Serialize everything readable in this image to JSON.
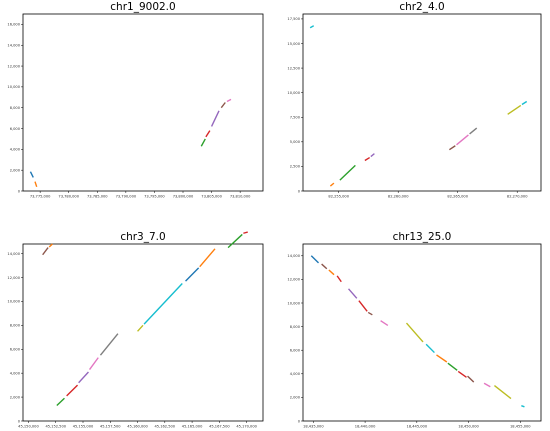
{
  "chart_data": [
    {
      "type": "line",
      "title": "chr1_9002.0",
      "xlabel": "",
      "ylabel": "",
      "xlim": [
        73772000,
        73814000
      ],
      "ylim": [
        0,
        17000
      ],
      "xticks": [
        73775000,
        73780000,
        73785000,
        73790000,
        73795000,
        73800000,
        73805000,
        73810000
      ],
      "xtick_labels": [
        "73,775,000",
        "73,780,000",
        "73,785,000",
        "73,790,000",
        "73,795,000",
        "73,800,000",
        "73,805,000",
        "73,810,000"
      ],
      "yticks": [
        0,
        2000,
        4000,
        6000,
        8000,
        10000,
        12000,
        14000,
        16000
      ],
      "ytick_labels": [
        "0",
        "2,000",
        "4,000",
        "6,000",
        "8,000",
        "10,000",
        "12,000",
        "14,000",
        "16,000"
      ],
      "series": [
        {
          "color": "#1f77b4",
          "points": [
            [
              73773300,
              1850
            ],
            [
              73773800,
              1300
            ]
          ]
        },
        {
          "color": "#ff7f0e",
          "points": [
            [
              73774100,
              900
            ],
            [
              73774400,
              400
            ]
          ]
        },
        {
          "color": "#2ca02c",
          "points": [
            [
              73803200,
              4300
            ],
            [
              73803900,
              5000
            ]
          ]
        },
        {
          "color": "#d62728",
          "points": [
            [
              73804000,
              5200
            ],
            [
              73804700,
              5800
            ]
          ]
        },
        {
          "color": "#9467bd",
          "points": [
            [
              73805000,
              6200
            ],
            [
              73806300,
              7700
            ]
          ]
        },
        {
          "color": "#8c564b",
          "points": [
            [
              73806700,
              8000
            ],
            [
              73807400,
              8500
            ]
          ]
        },
        {
          "color": "#e377c2",
          "points": [
            [
              73807700,
              8600
            ],
            [
              73808400,
              8800
            ]
          ]
        }
      ]
    },
    {
      "type": "line",
      "title": "chr2_4.0",
      "xlabel": "",
      "ylabel": "",
      "xlim": [
        82252000,
        82272000
      ],
      "ylim": [
        0,
        18000
      ],
      "xticks": [
        82255000,
        82260000,
        82265000,
        82270000
      ],
      "xtick_labels": [
        "82,255,000",
        "82,260,000",
        "82,265,000",
        "82,270,000"
      ],
      "yticks": [
        0,
        2500,
        5000,
        7500,
        10000,
        12500,
        15000,
        17500
      ],
      "ytick_labels": [
        "0",
        "2,500",
        "5,000",
        "7,500",
        "10,000",
        "12,500",
        "15,000",
        "17,500"
      ],
      "series": [
        {
          "color": "#17becf",
          "points": [
            [
              82252600,
              16600
            ],
            [
              82252900,
              16800
            ]
          ]
        },
        {
          "color": "#ff7f0e",
          "points": [
            [
              82254300,
              500
            ],
            [
              82254600,
              800
            ]
          ]
        },
        {
          "color": "#2ca02c",
          "points": [
            [
              82255100,
              1100
            ],
            [
              82256400,
              2600
            ]
          ]
        },
        {
          "color": "#d62728",
          "points": [
            [
              82257200,
              3100
            ],
            [
              82257600,
              3400
            ]
          ]
        },
        {
          "color": "#9467bd",
          "points": [
            [
              82257700,
              3500
            ],
            [
              82258000,
              3800
            ]
          ]
        },
        {
          "color": "#8c564b",
          "points": [
            [
              82264300,
              4200
            ],
            [
              82264800,
              4600
            ]
          ]
        },
        {
          "color": "#e377c2",
          "points": [
            [
              82264900,
              4700
            ],
            [
              82265900,
              5700
            ]
          ]
        },
        {
          "color": "#7f7f7f",
          "points": [
            [
              82266000,
              5800
            ],
            [
              82266600,
              6400
            ]
          ]
        },
        {
          "color": "#bcbd22",
          "points": [
            [
              82269200,
              7800
            ],
            [
              82270300,
              8700
            ]
          ]
        },
        {
          "color": "#17becf",
          "points": [
            [
              82270400,
              8800
            ],
            [
              82270800,
              9100
            ]
          ]
        }
      ]
    },
    {
      "type": "line",
      "title": "chr3_7.0",
      "xlabel": "",
      "ylabel": "",
      "xlim": [
        45149500,
        45171500
      ],
      "ylim": [
        0,
        14800
      ],
      "xticks": [
        45150000,
        45152500,
        45155000,
        45157500,
        45160000,
        45162500,
        45165000,
        45167500,
        45170000
      ],
      "xtick_labels": [
        "45,150,000",
        "45,152,500",
        "45,155,000",
        "45,157,500",
        "45,160,000",
        "45,162,500",
        "45,165,000",
        "45,167,500",
        "45,170,000"
      ],
      "yticks": [
        0,
        2000,
        4000,
        6000,
        8000,
        10000,
        12000,
        14000
      ],
      "ytick_labels": [
        "0",
        "2,000",
        "4,000",
        "6,000",
        "8,000",
        "10,000",
        "12,000",
        "14,000"
      ],
      "series": [
        {
          "color": "#8c564b",
          "points": [
            [
              45151300,
              13900
            ],
            [
              45151800,
              14500
            ]
          ]
        },
        {
          "color": "#ff7f0e",
          "points": [
            [
              45151900,
              14550
            ],
            [
              45152200,
              14800
            ]
          ]
        },
        {
          "color": "#2ca02c",
          "points": [
            [
              45152600,
              1300
            ],
            [
              45153300,
              1900
            ]
          ]
        },
        {
          "color": "#d62728",
          "points": [
            [
              45153500,
              2100
            ],
            [
              45154500,
              3000
            ]
          ]
        },
        {
          "color": "#9467bd",
          "points": [
            [
              45154600,
              3200
            ],
            [
              45155500,
              4100
            ]
          ]
        },
        {
          "color": "#e377c2",
          "points": [
            [
              45155600,
              4300
            ],
            [
              45156400,
              5300
            ]
          ]
        },
        {
          "color": "#7f7f7f",
          "points": [
            [
              45156600,
              5500
            ],
            [
              45158200,
              7300
            ]
          ]
        },
        {
          "color": "#bcbd22",
          "points": [
            [
              45160000,
              7500
            ],
            [
              45160500,
              8000
            ]
          ]
        },
        {
          "color": "#17becf",
          "points": [
            [
              45160600,
              8100
            ],
            [
              45164100,
              11500
            ]
          ]
        },
        {
          "color": "#1f77b4",
          "points": [
            [
              45164400,
              11700
            ],
            [
              45165600,
              12800
            ]
          ]
        },
        {
          "color": "#ff7f0e",
          "points": [
            [
              45165700,
              12900
            ],
            [
              45167100,
              14400
            ]
          ]
        },
        {
          "color": "#2ca02c",
          "points": [
            [
              45168300,
              14500
            ],
            [
              45169600,
              15600
            ]
          ]
        },
        {
          "color": "#d62728",
          "points": [
            [
              45169700,
              15700
            ],
            [
              45170100,
              15800
            ]
          ]
        }
      ]
    },
    {
      "type": "line",
      "title": "chr13_25.0",
      "xlabel": "",
      "ylabel": "",
      "xlim": [
        18434000,
        18457000
      ],
      "ylim": [
        0,
        15000
      ],
      "xticks": [
        18435000,
        18440000,
        18445000,
        18450000,
        18455000
      ],
      "xtick_labels": [
        "18,435,000",
        "18,440,000",
        "18,445,000",
        "18,450,000",
        "18,455,000"
      ],
      "yticks": [
        0,
        2000,
        4000,
        6000,
        8000,
        10000,
        12000,
        14000
      ],
      "ytick_labels": [
        "0",
        "2,000",
        "4,000",
        "6,000",
        "8,000",
        "10,000",
        "12,000",
        "14,000"
      ],
      "series": [
        {
          "color": "#1f77b4",
          "points": [
            [
              18434800,
              14000
            ],
            [
              18435500,
              13400
            ]
          ]
        },
        {
          "color": "#8c564b",
          "points": [
            [
              18435800,
              13300
            ],
            [
              18436300,
              12900
            ]
          ]
        },
        {
          "color": "#ff7f0e",
          "points": [
            [
              18436500,
              12800
            ],
            [
              18437000,
              12400
            ]
          ]
        },
        {
          "color": "#d62728",
          "points": [
            [
              18437300,
              12300
            ],
            [
              18437700,
              11800
            ]
          ]
        },
        {
          "color": "#9467bd",
          "points": [
            [
              18438400,
              11200
            ],
            [
              18439200,
              10400
            ]
          ]
        },
        {
          "color": "#d62728",
          "points": [
            [
              18439400,
              10200
            ],
            [
              18440200,
              9300
            ]
          ]
        },
        {
          "color": "#8c564b",
          "points": [
            [
              18440300,
              9200
            ],
            [
              18440700,
              9000
            ]
          ]
        },
        {
          "color": "#e377c2",
          "points": [
            [
              18441500,
              8500
            ],
            [
              18442200,
              8100
            ]
          ]
        },
        {
          "color": "#bcbd22",
          "points": [
            [
              18444000,
              8300
            ],
            [
              18445600,
              6700
            ]
          ]
        },
        {
          "color": "#17becf",
          "points": [
            [
              18445900,
              6500
            ],
            [
              18446700,
              5800
            ]
          ]
        },
        {
          "color": "#ff7f0e",
          "points": [
            [
              18446900,
              5600
            ],
            [
              18447900,
              5000
            ]
          ]
        },
        {
          "color": "#2ca02c",
          "points": [
            [
              18448000,
              4900
            ],
            [
              18448900,
              4300
            ]
          ]
        },
        {
          "color": "#d62728",
          "points": [
            [
              18449000,
              4200
            ],
            [
              18449800,
              3700
            ]
          ]
        },
        {
          "color": "#8c564b",
          "points": [
            [
              18449900,
              3800
            ],
            [
              18450500,
              3300
            ]
          ]
        },
        {
          "color": "#e377c2",
          "points": [
            [
              18451500,
              3200
            ],
            [
              18452100,
              2900
            ]
          ]
        },
        {
          "color": "#bcbd22",
          "points": [
            [
              18452500,
              3000
            ],
            [
              18454100,
              1900
            ]
          ]
        },
        {
          "color": "#17becf",
          "points": [
            [
              18455100,
              1300
            ],
            [
              18455400,
              1200
            ]
          ]
        }
      ]
    }
  ]
}
